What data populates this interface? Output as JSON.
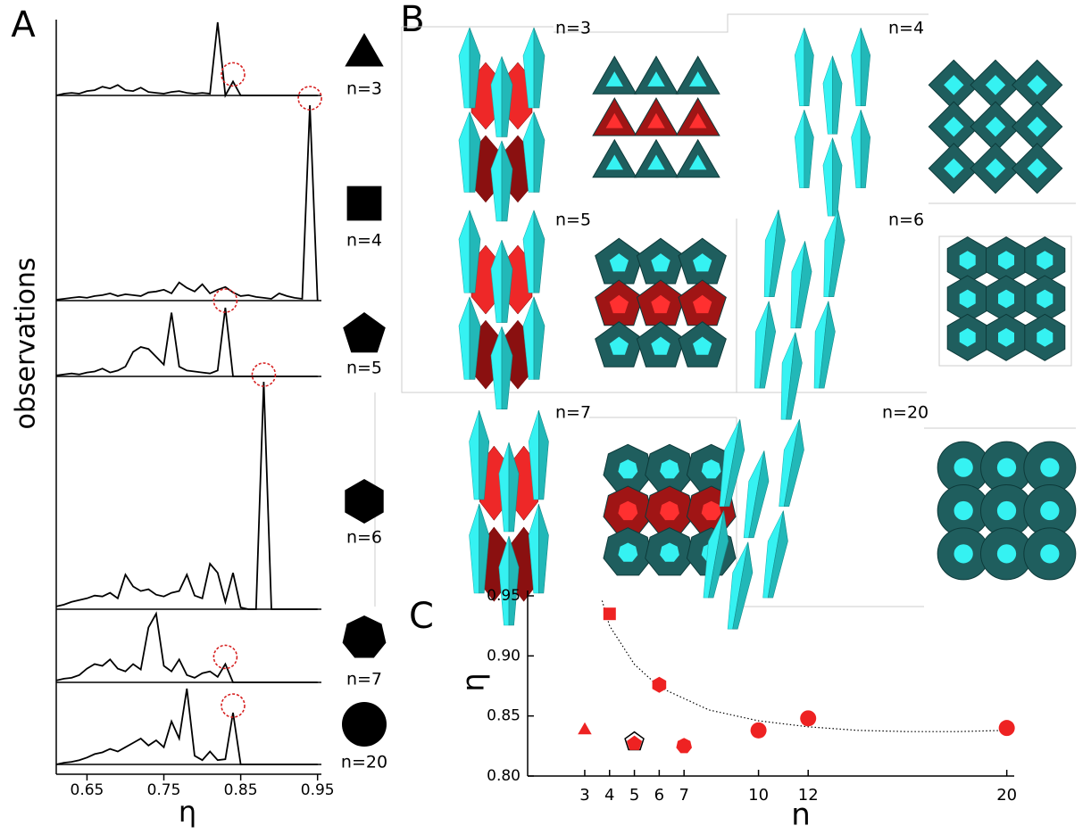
{
  "panel_labels": {
    "a": "A",
    "b": "B",
    "c": "C"
  },
  "chart_data": [
    {
      "type": "line",
      "xlabel": "η",
      "ylabel": "observations",
      "color": "#000000",
      "highlight_color": "#d62020",
      "x": [
        0.61,
        0.62,
        0.63,
        0.64,
        0.65,
        0.66,
        0.67,
        0.68,
        0.69,
        0.7,
        0.71,
        0.72,
        0.73,
        0.74,
        0.75,
        0.76,
        0.77,
        0.78,
        0.79,
        0.8,
        0.81,
        0.82,
        0.83,
        0.84,
        0.85,
        0.86,
        0.87,
        0.88,
        0.89,
        0.9,
        0.91,
        0.92,
        0.93,
        0.94,
        0.95
      ],
      "xlim": [
        0.61,
        0.955
      ],
      "xticks": [
        0.65,
        0.75,
        0.85,
        0.95
      ],
      "series": [
        {
          "name": "n=3",
          "marker": "triangle",
          "highlight": 0.84,
          "values": [
            0,
            2,
            3,
            2,
            5,
            6,
            10,
            8,
            12,
            6,
            5,
            9,
            4,
            3,
            2,
            4,
            5,
            3,
            2,
            3,
            2,
            84,
            0,
            16,
            0,
            0,
            0,
            0,
            0,
            0,
            0,
            0,
            0,
            0,
            0
          ]
        },
        {
          "name": "n=4",
          "marker": "square",
          "highlight": 0.94,
          "values": [
            1,
            2,
            3,
            4,
            3,
            5,
            6,
            8,
            5,
            7,
            6,
            5,
            9,
            10,
            12,
            8,
            20,
            14,
            10,
            18,
            8,
            12,
            15,
            9,
            5,
            6,
            4,
            3,
            2,
            8,
            5,
            3,
            2,
            215,
            0
          ]
        },
        {
          "name": "n=5",
          "marker": "pentagon",
          "highlight": 0.83,
          "values": [
            1,
            2,
            3,
            2,
            4,
            5,
            8,
            4,
            6,
            10,
            25,
            30,
            28,
            20,
            12,
            65,
            10,
            6,
            5,
            4,
            3,
            6,
            70,
            0,
            0,
            0,
            0,
            0,
            0,
            0,
            0,
            0,
            0,
            0,
            0
          ]
        },
        {
          "name": "n=6",
          "marker": "hexagon",
          "highlight": 0.88,
          "values": [
            3,
            5,
            8,
            10,
            12,
            15,
            14,
            18,
            12,
            38,
            25,
            20,
            22,
            16,
            14,
            18,
            20,
            38,
            15,
            12,
            50,
            40,
            8,
            40,
            2,
            0,
            0,
            250,
            0,
            0,
            0,
            0,
            0,
            0,
            0
          ]
        },
        {
          "name": "n=7",
          "marker": "heptagon",
          "highlight": 0.83,
          "values": [
            2,
            4,
            5,
            8,
            15,
            20,
            18,
            25,
            15,
            12,
            20,
            14,
            60,
            75,
            18,
            12,
            25,
            8,
            5,
            10,
            12,
            6,
            20,
            0,
            0,
            0,
            0,
            0,
            0,
            0,
            0,
            0,
            0,
            0,
            0
          ]
        },
        {
          "name": "n=20",
          "marker": "circle",
          "highlight": 0.84,
          "values": [
            0,
            2,
            3,
            5,
            8,
            12,
            14,
            18,
            15,
            20,
            25,
            30,
            22,
            28,
            20,
            50,
            30,
            88,
            10,
            5,
            15,
            5,
            6,
            60,
            0,
            0,
            0,
            0,
            0,
            0,
            0,
            0,
            0,
            0,
            0
          ]
        }
      ]
    },
    {
      "type": "scatter",
      "xlabel": "n",
      "ylabel": "η",
      "color": "#ee2222",
      "x": [
        3,
        4,
        5,
        6,
        7,
        10,
        12,
        20
      ],
      "values": [
        0.838,
        0.935,
        0.827,
        0.876,
        0.825,
        0.838,
        0.848,
        0.84
      ],
      "markers": [
        "triangle",
        "square",
        "pentagon",
        "hexagon",
        "heptagon",
        "circle",
        "circle",
        "circle"
      ],
      "xlim": [
        0.7,
        20.3
      ],
      "xticks": [
        3,
        4,
        5,
        6,
        7,
        10,
        12,
        20
      ],
      "ylim": [
        0.8,
        0.95
      ],
      "yticks": [
        {
          "value": 0.8,
          "label": "0.80"
        },
        {
          "value": 0.85,
          "label": "0.85"
        },
        {
          "value": 0.9,
          "label": "0.90"
        },
        {
          "value": 0.95,
          "label": "0.95"
        }
      ],
      "fit": {
        "x": [
          3.7,
          4,
          5,
          6,
          8,
          10,
          12,
          14,
          16,
          18,
          20
        ],
        "values": [
          0.946,
          0.925,
          0.893,
          0.874,
          0.855,
          0.846,
          0.841,
          0.838,
          0.837,
          0.837,
          0.838
        ]
      }
    }
  ],
  "structures": [
    {
      "label": "n=3"
    },
    {
      "label": "n=4"
    },
    {
      "label": "n=5"
    },
    {
      "label": "n=6"
    },
    {
      "label": "n=7"
    },
    {
      "label": "n=20"
    }
  ]
}
